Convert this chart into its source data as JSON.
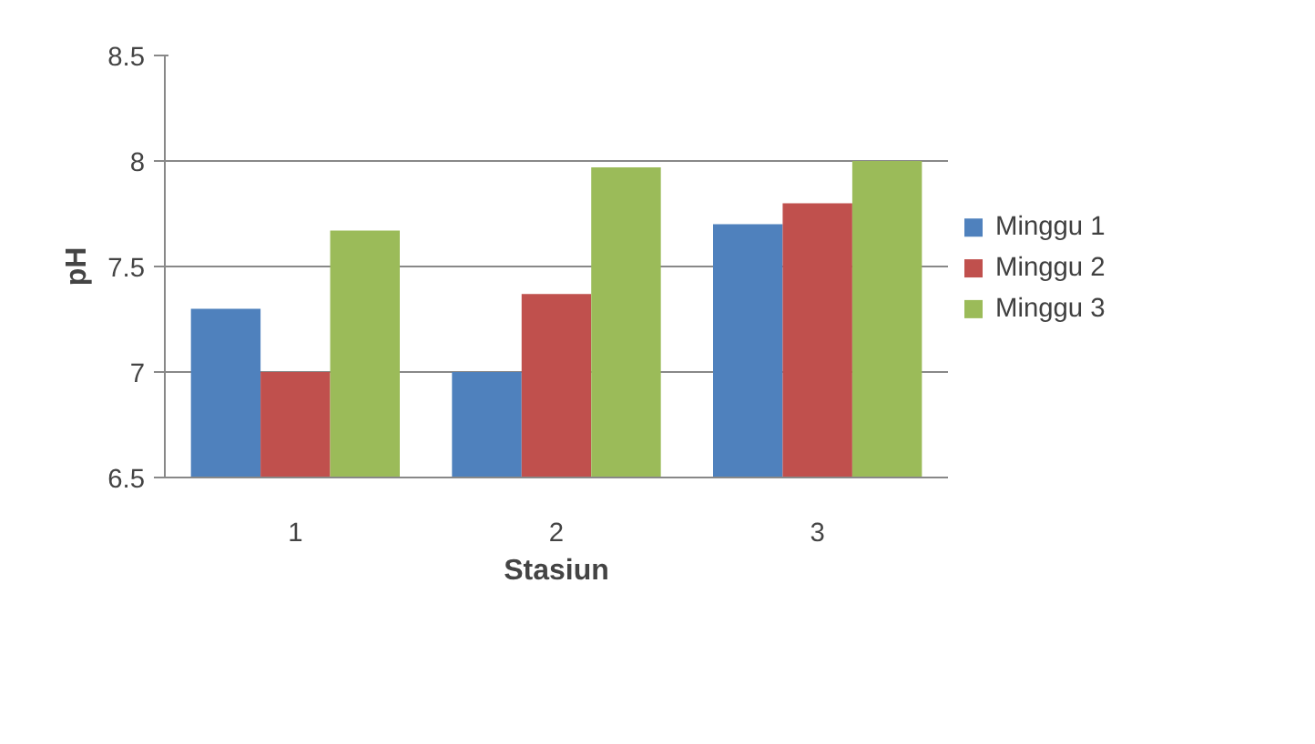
{
  "chart_data": {
    "type": "bar",
    "xlabel": "Stasiun",
    "ylabel": "pH",
    "categories": [
      "1",
      "2",
      "3"
    ],
    "series": [
      {
        "name": "Minggu 1",
        "color": "#4f81bd",
        "values": [
          7.3,
          7.0,
          7.7
        ]
      },
      {
        "name": "Minggu 2",
        "color": "#c0504d",
        "values": [
          7.0,
          7.37,
          7.8
        ]
      },
      {
        "name": "Minggu 3",
        "color": "#9bbb59",
        "values": [
          7.67,
          7.97,
          8.0
        ]
      }
    ],
    "ylim": [
      6.5,
      8.5
    ],
    "yticks": [
      6.5,
      7,
      7.5,
      8,
      8.5
    ],
    "grid": "y",
    "legend": "right"
  }
}
